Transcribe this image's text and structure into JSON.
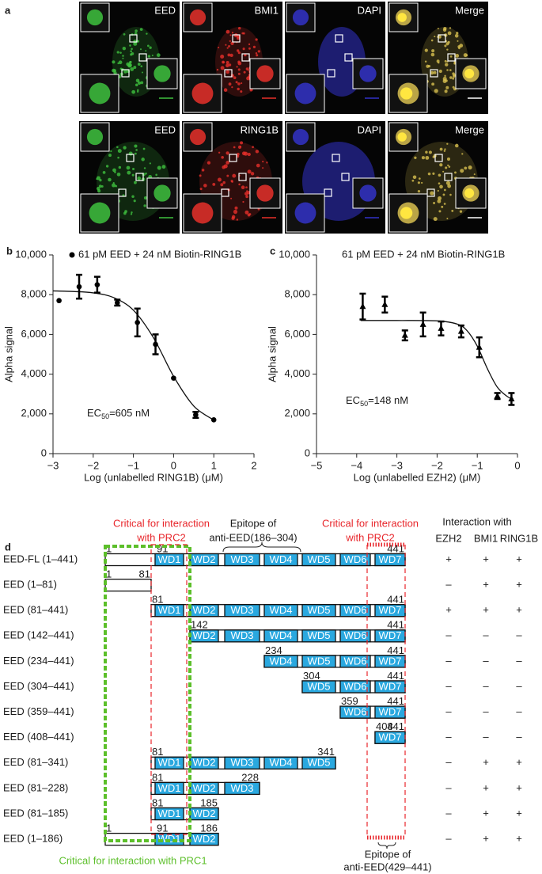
{
  "panel_a": {
    "label": "a",
    "rows": [
      {
        "channels": [
          "EED",
          "BMI1",
          "DAPI",
          "Merge"
        ]
      },
      {
        "channels": [
          "EED",
          "RING1B",
          "DAPI",
          "Merge"
        ]
      }
    ]
  },
  "chart_data": [
    {
      "type": "scatter",
      "panel": "b",
      "y_label": "Alpha signal",
      "x_label": "Log (unlabelled RING1B) (μM)",
      "annotation": [
        "EC",
        "50",
        "=605 nM"
      ],
      "xlim": [
        -3,
        2
      ],
      "xticks": [
        {
          "value": -3,
          "label": "−3"
        },
        {
          "value": -2,
          "label": "−2"
        },
        {
          "value": -1,
          "label": "−1"
        },
        0,
        1,
        2
      ],
      "ylim": [
        0,
        10000
      ],
      "yticks": [
        0,
        {
          "value": 2000,
          "label": "2,000"
        },
        {
          "value": 4000,
          "label": "4,000"
        },
        {
          "value": 6000,
          "label": "6,000"
        },
        {
          "value": 8000,
          "label": "8,000"
        },
        {
          "value": 10000,
          "label": "10,000"
        }
      ],
      "legend_marker": true,
      "series": [
        {
          "name": "61 pM EED + 24 nM Biotin-RING1B",
          "color": "#000000",
          "marker": "circle",
          "x": [
            -2.85,
            -2.35,
            -1.9,
            -1.4,
            -0.9,
            -0.45,
            0,
            0.55,
            1.0
          ],
          "values": [
            7700,
            8400,
            8500,
            7600,
            6600,
            5500,
            3800,
            1950,
            1700
          ],
          "errors": [
            null,
            600,
            400,
            150,
            700,
            500,
            null,
            150,
            null
          ]
        }
      ],
      "fit": {
        "x": [
          -3,
          -2.5,
          -2,
          -1.5,
          -1,
          -0.5,
          0,
          0.5,
          1
        ],
        "values": [
          8190,
          8160,
          8090,
          7860,
          7220,
          5830,
          3890,
          2400,
          1690
        ]
      }
    },
    {
      "type": "scatter",
      "panel": "c",
      "y_label": "Alpha signal",
      "x_label": "Log (unlabelled EZH2) (μM)",
      "annotation": [
        "EC",
        "50",
        "=148 nM"
      ],
      "xlim": [
        -5,
        0
      ],
      "xticks": [
        {
          "value": -5,
          "label": "−5"
        },
        {
          "value": -4,
          "label": "−4"
        },
        {
          "value": -3,
          "label": "−3"
        },
        {
          "value": -2,
          "label": "−2"
        },
        {
          "value": -1,
          "label": "−1"
        },
        0
      ],
      "ylim": [
        0,
        10000
      ],
      "yticks": [
        0,
        {
          "value": 2000,
          "label": "2,000"
        },
        {
          "value": 4000,
          "label": "4,000"
        },
        {
          "value": 6000,
          "label": "6,000"
        },
        {
          "value": 8000,
          "label": "8,000"
        },
        {
          "value": 10000,
          "label": "10,000"
        }
      ],
      "legend_marker": false,
      "series": [
        {
          "name": "61 pM EED + 24 nM Biotin-RING1B",
          "color": "#000000",
          "marker": "triangle",
          "x": [
            -3.85,
            -3.3,
            -2.8,
            -2.35,
            -1.9,
            -1.4,
            -0.95,
            -0.5,
            -0.15
          ],
          "values": [
            7400,
            7500,
            5950,
            6500,
            6300,
            6150,
            5350,
            2900,
            2750
          ],
          "errors": [
            650,
            400,
            250,
            600,
            350,
            300,
            500,
            150,
            300
          ]
        }
      ],
      "fit": {
        "x": [
          -3.9,
          -3,
          -2,
          -1.5,
          -1.25,
          -1,
          -0.75,
          -0.5,
          -0.25,
          -0.1
        ],
        "values": [
          6700,
          6700,
          6680,
          6520,
          6180,
          5410,
          4280,
          3340,
          2870,
          2740
        ]
      }
    }
  ],
  "panel_d": {
    "label": "d",
    "prc2_left": [
      "Critical for interaction",
      "with PRC2"
    ],
    "epitope_top": [
      "Epitope of",
      "anti-EED(186–304)"
    ],
    "prc2_right": [
      "Critical for interaction",
      "with PRC2"
    ],
    "interaction": "Interaction with",
    "columns": [
      "EZH2",
      "BMI1",
      "RING1B"
    ],
    "prc1": "Critical for interaction with PRC1",
    "epitope_bottom": [
      "Epitope of",
      "anti-EED(429–441)"
    ],
    "rows": [
      {
        "name": "EED-FL (1–441)",
        "residues": [
          1,
          91,
          441
        ],
        "domains": [
          "WD1",
          "WD2",
          "WD3",
          "WD4",
          "WD5",
          "WD6",
          "WD7"
        ],
        "interaction": [
          "+",
          "+",
          "+"
        ]
      },
      {
        "name": "EED (1–81)",
        "residues": [
          1,
          81
        ],
        "domains": [],
        "interaction": [
          "–",
          "+",
          "+"
        ]
      },
      {
        "name": "EED (81–441)",
        "residues": [
          81,
          441
        ],
        "domains": [
          "WD1",
          "WD2",
          "WD3",
          "WD4",
          "WD5",
          "WD6",
          "WD7"
        ],
        "interaction": [
          "+",
          "+",
          "+"
        ]
      },
      {
        "name": "EED (142–441)",
        "residues": [
          142,
          441
        ],
        "domains": [
          "WD2",
          "WD3",
          "WD4",
          "WD5",
          "WD6",
          "WD7"
        ],
        "interaction": [
          "–",
          "–",
          "–"
        ]
      },
      {
        "name": "EED (234–441)",
        "residues": [
          234,
          441
        ],
        "domains": [
          "WD4",
          "WD5",
          "WD6",
          "WD7"
        ],
        "interaction": [
          "–",
          "–",
          "–"
        ]
      },
      {
        "name": "EED (304–441)",
        "residues": [
          304,
          441
        ],
        "domains": [
          "WD5",
          "WD6",
          "WD7"
        ],
        "interaction": [
          "–",
          "–",
          "–"
        ]
      },
      {
        "name": "EED (359–441)",
        "residues": [
          359,
          441
        ],
        "domains": [
          "WD6",
          "WD7"
        ],
        "interaction": [
          "–",
          "–",
          "–"
        ]
      },
      {
        "name": "EED (408–441)",
        "residues": [
          408,
          441
        ],
        "domains": [
          "WD7"
        ],
        "interaction": [
          "–",
          "–",
          "–"
        ]
      },
      {
        "name": "EED (81–341)",
        "residues": [
          81,
          341
        ],
        "domains": [
          "WD1",
          "WD2",
          "WD3",
          "WD4",
          "WD5"
        ],
        "interaction": [
          "–",
          "+",
          "+"
        ]
      },
      {
        "name": "EED (81–228)",
        "residues": [
          81,
          228
        ],
        "domains": [
          "WD1",
          "WD2",
          "WD3"
        ],
        "interaction": [
          "–",
          "+",
          "+"
        ]
      },
      {
        "name": "EED (81–185)",
        "residues": [
          81,
          185
        ],
        "domains": [
          "WD1",
          "WD2"
        ],
        "interaction": [
          "–",
          "+",
          "+"
        ]
      },
      {
        "name": "EED (1–186)",
        "residues": [
          1,
          91,
          186
        ],
        "domains": [
          "WD1",
          "WD2"
        ],
        "interaction": [
          "–",
          "+",
          "+"
        ]
      }
    ]
  }
}
